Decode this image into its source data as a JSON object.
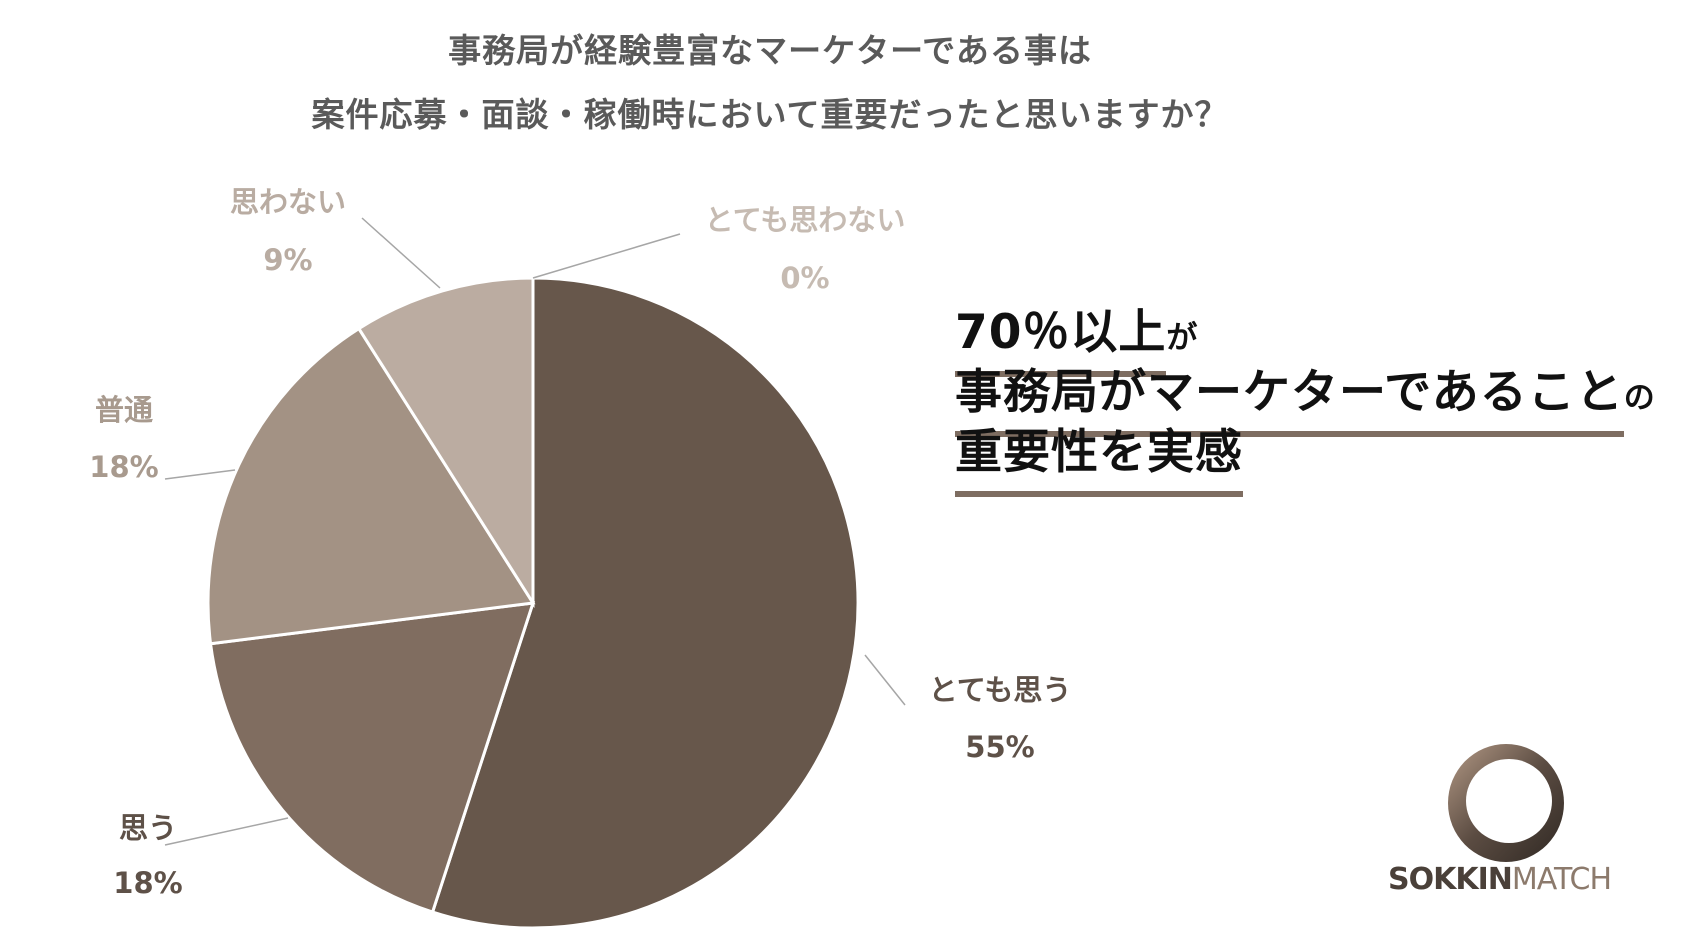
{
  "title": {
    "line1": "事務局が経験豊富なマーケターである事は",
    "line2": "案件応募・面談・稼働時において重要だったと思いますか？"
  },
  "chart_data": {
    "type": "pie",
    "title": "事務局が経験豊富なマーケターである事は 案件応募・面談・稼働時において重要だったと思いますか？",
    "slices": [
      {
        "label": "とても思う",
        "value": 55,
        "pct": "55%",
        "color": "#67574b",
        "label_color": "#5e5148"
      },
      {
        "label": "思う",
        "value": 18,
        "pct": "18%",
        "color": "#806d60",
        "label_color": "#5e5148"
      },
      {
        "label": "普通",
        "value": 18,
        "pct": "18%",
        "color": "#a39284",
        "label_color": "#a89a8e"
      },
      {
        "label": "思わない",
        "value": 9,
        "pct": "9%",
        "color": "#bbaca1",
        "label_color": "#b9aca2"
      },
      {
        "label": "とても思わない",
        "value": 0,
        "pct": "0%",
        "color": "#d9cfc7",
        "label_color": "#c6bbb2"
      }
    ]
  },
  "callout": {
    "line1_big": "70％以上",
    "line1_small": "が",
    "line2_big": "事務局がマーケターであること",
    "line2_small": "の",
    "line3_big": "重要性を実感"
  },
  "logo": {
    "text_bold": "SOKKIN",
    "text_light": "MATCH"
  }
}
